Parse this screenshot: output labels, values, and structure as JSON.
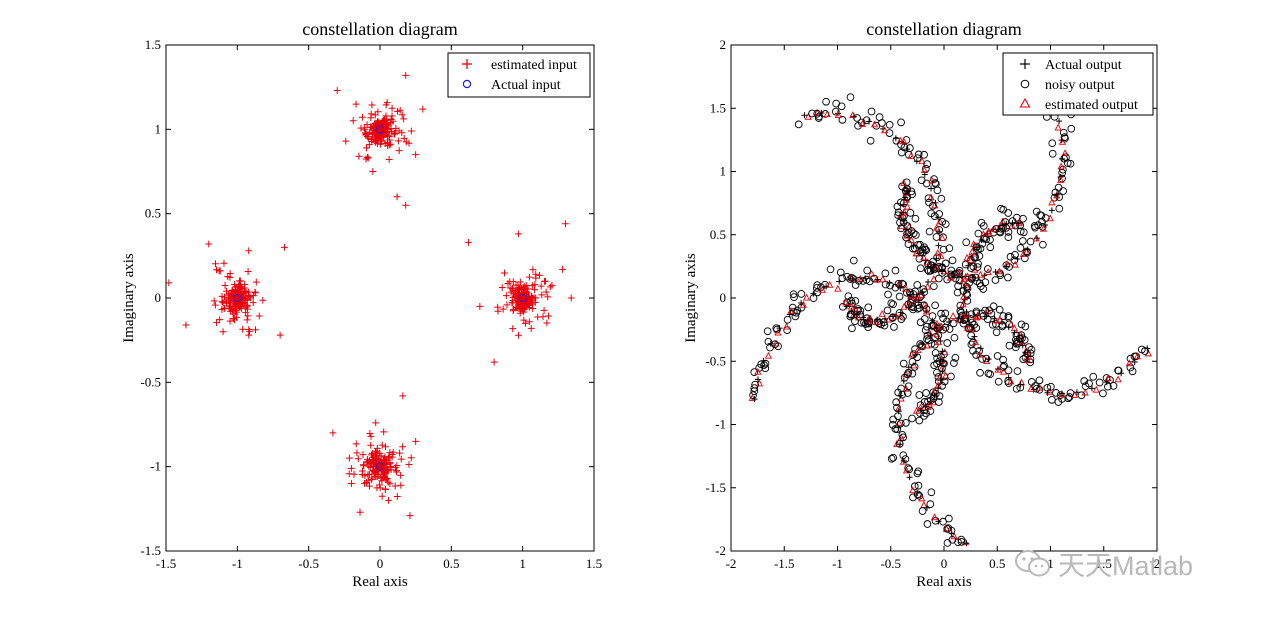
{
  "chart_data": [
    {
      "type": "scatter",
      "title": "constellation diagram",
      "xlabel": "Real axis",
      "ylabel": "Imaginary axis",
      "xlim": [
        -1.5,
        1.5
      ],
      "ylim": [
        -1.5,
        1.5
      ],
      "xticks": [
        "-1.5",
        "-1",
        "-0.5",
        "0",
        "0.5",
        "1",
        "1.5"
      ],
      "yticks": [
        "-1.5",
        "-1",
        "-0.5",
        "0",
        "0.5",
        "1",
        "1.5"
      ],
      "legend_position": "top-right",
      "series": [
        {
          "name": "estimated input",
          "marker": "plus",
          "color": "#e8000b",
          "cluster_centers": [
            [
              1,
              0
            ],
            [
              -1,
              0
            ],
            [
              0,
              1
            ],
            [
              0,
              -1
            ]
          ],
          "outliers": [
            [
              -0.3,
              1.23
            ],
            [
              0.18,
              1.32
            ],
            [
              0.3,
              1.12
            ],
            [
              -0.24,
              0.93
            ],
            [
              0.12,
              0.6
            ],
            [
              0.18,
              0.55
            ],
            [
              -0.05,
              0.75
            ],
            [
              0.25,
              0.85
            ],
            [
              -1.2,
              0.32
            ],
            [
              -0.67,
              0.3
            ],
            [
              -0.92,
              0.28
            ],
            [
              -1.48,
              0.09
            ],
            [
              -1.36,
              -0.16
            ],
            [
              -0.7,
              -0.22
            ],
            [
              -1.1,
              -0.2
            ],
            [
              -0.92,
              -0.22
            ],
            [
              0.62,
              0.33
            ],
            [
              1.3,
              0.44
            ],
            [
              0.97,
              0.38
            ],
            [
              1.28,
              0.17
            ],
            [
              1.34,
              0
            ],
            [
              0.8,
              -0.38
            ],
            [
              1.06,
              -0.18
            ],
            [
              0.7,
              -0.05
            ],
            [
              -0.33,
              -0.8
            ],
            [
              0.16,
              -0.58
            ],
            [
              -0.03,
              -0.74
            ],
            [
              0.21,
              -1.29
            ],
            [
              -0.14,
              -1.27
            ],
            [
              0.25,
              -0.85
            ],
            [
              0.06,
              -1.2
            ],
            [
              -0.2,
              -1.1
            ]
          ]
        },
        {
          "name": "Actual input",
          "marker": "circle",
          "color": "#1f1fd6",
          "points": [
            [
              1,
              0
            ],
            [
              -1,
              0
            ],
            [
              0,
              1
            ],
            [
              0,
              -1
            ]
          ]
        }
      ]
    },
    {
      "type": "scatter",
      "title": "constellation diagram",
      "xlabel": "Real axis",
      "ylabel": "Imaginary axis",
      "xlim": [
        -2,
        2
      ],
      "ylim": [
        -2,
        2
      ],
      "xticks": [
        "-2",
        "-1.5",
        "-1",
        "-0.5",
        "0",
        "0.5",
        "1",
        "1.5",
        "2"
      ],
      "yticks": [
        "-2",
        "-1.5",
        "-1",
        "-0.5",
        "0",
        "0.5",
        "1",
        "1.5",
        "2"
      ],
      "legend_position": "top-right",
      "arms": 5,
      "series": [
        {
          "name": "Actual output",
          "marker": "plus",
          "color": "#000000"
        },
        {
          "name": "noisy output",
          "marker": "circle",
          "color": "#000000"
        },
        {
          "name": "estimated output",
          "marker": "triangle",
          "color": "#e8000b"
        }
      ]
    }
  ],
  "watermark": {
    "text": "天天Matlab",
    "icon": "wechat-icon"
  }
}
